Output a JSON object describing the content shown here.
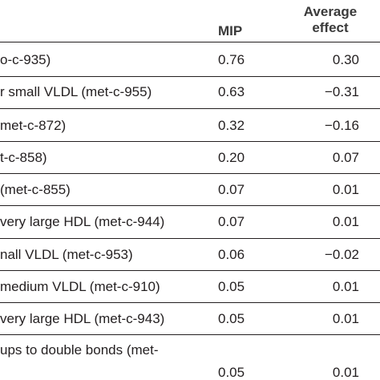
{
  "headers": {
    "mip": "MIP",
    "avg_line1": "Average",
    "avg_line2": "effect"
  },
  "rows": [
    {
      "name": "o-c-935)",
      "mip": "0.76",
      "avg": "0.30"
    },
    {
      "name": "r small VLDL (met-c-955)",
      "mip": "0.63",
      "avg": "−0.31"
    },
    {
      "name": "met-c-872)",
      "mip": "0.32",
      "avg": "−0.16"
    },
    {
      "name": "t-c-858)",
      "mip": "0.20",
      "avg": "0.07"
    },
    {
      "name": "(met-c-855)",
      "mip": "0.07",
      "avg": "0.01"
    },
    {
      "name": "very large HDL (met-c-944)",
      "mip": "0.07",
      "avg": "0.01"
    },
    {
      "name": "nall VLDL (met-c-953)",
      "mip": "0.06",
      "avg": "−0.02"
    },
    {
      "name": "medium VLDL (met-c-910)",
      "mip": "0.05",
      "avg": "0.01"
    },
    {
      "name": "very large HDL (met-c-943)",
      "mip": "0.05",
      "avg": "0.01"
    },
    {
      "name_line1": "ups to double bonds (met-",
      "mip": "0.05",
      "avg": "0.01"
    }
  ]
}
